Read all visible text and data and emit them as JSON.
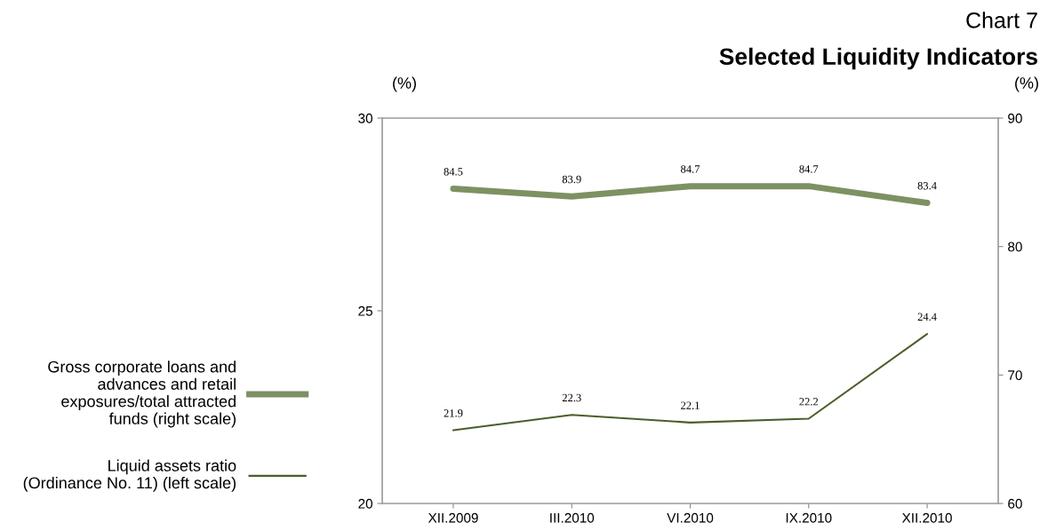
{
  "chart_data": {
    "type": "line",
    "title": "Chart 7",
    "subtitle": "Selected Liquidity Indicators",
    "ylabel": "(%)",
    "y2label": "(%)",
    "categories": [
      "XII.2009",
      "III.2010",
      "VI.2010",
      "IX.2010",
      "XII.2010"
    ],
    "series": [
      {
        "name": "Gross corporate loans and\nadvances and retail\nexposures/total attracted\nfunds (right scale)",
        "color": "#7d9163",
        "axis": "y2",
        "values": [
          84.5,
          83.9,
          84.7,
          84.7,
          83.4
        ]
      },
      {
        "name": "Liquid assets ratio\n(Ordinance No. 11) (left scale)",
        "color": "#4b5e2a",
        "axis": "y",
        "values": [
          21.9,
          22.3,
          22.1,
          22.2,
          24.4
        ]
      }
    ],
    "ylim": [
      20,
      30
    ],
    "yticks": [
      20,
      25,
      30
    ],
    "y2lim": [
      60,
      90
    ],
    "y2ticks": [
      60,
      70,
      80,
      90
    ],
    "data_labels": true,
    "legend": "left",
    "grid": false,
    "marker": "none",
    "line_style": "solid"
  }
}
